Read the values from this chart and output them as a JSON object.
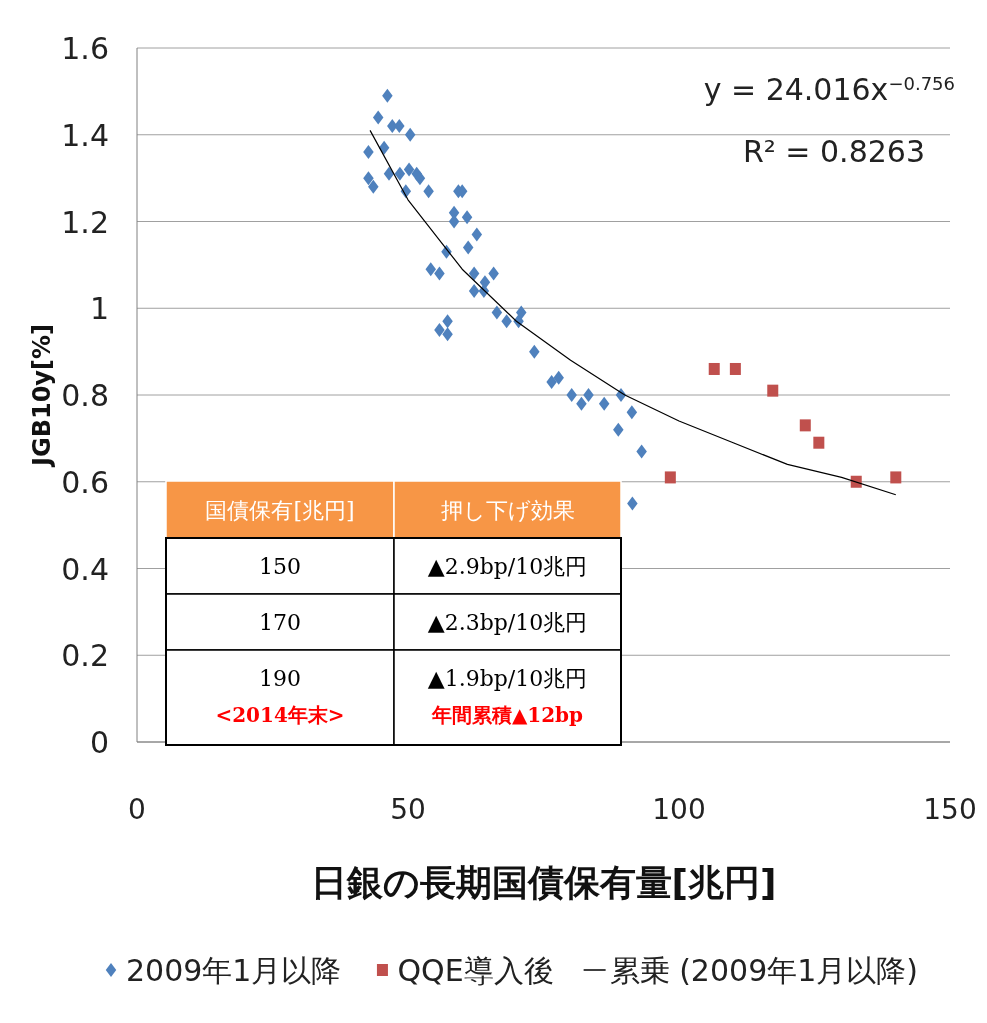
{
  "chart_data": {
    "type": "scatter",
    "xlabel": "日銀の長期国債保有量[兆円]",
    "ylabel": "JGB10y[%]",
    "xlim": [
      0,
      150
    ],
    "ylim": [
      0,
      1.6
    ],
    "xticks": [
      0,
      50,
      100,
      150
    ],
    "yticks": [
      0,
      0.2,
      0.4,
      0.6,
      0.8,
      1,
      1.2,
      1.4,
      1.6
    ],
    "grid": "y",
    "legend": "bottom",
    "series": [
      {
        "name": "2009年1月以降",
        "marker": "diamond",
        "color": "#4f81bd",
        "x": [
          42.7,
          42.7,
          43.6,
          44.5,
          45.6,
          46.2,
          46.5,
          47.1,
          48.4,
          48.5,
          49.6,
          50.2,
          50.4,
          51.6,
          52.2,
          53.8,
          54.2,
          55.8,
          55.8,
          57.1,
          57.3,
          57.3,
          58.5,
          58.5,
          59.3,
          60.0,
          60.9,
          61.1,
          62.2,
          62.7,
          62.2,
          64.0,
          64.2,
          65.8,
          66.4,
          68.2,
          70.4,
          70.9,
          73.3,
          76.5,
          77.8,
          80.2,
          82.0,
          83.3,
          86.2,
          88.8,
          89.3,
          91.3,
          91.4,
          93.1
        ],
        "values": [
          1.3,
          1.36,
          1.28,
          1.44,
          1.37,
          1.49,
          1.31,
          1.42,
          1.42,
          1.31,
          1.27,
          1.32,
          1.4,
          1.31,
          1.3,
          1.27,
          1.09,
          1.08,
          0.95,
          1.13,
          0.97,
          0.94,
          1.22,
          1.2,
          1.27,
          1.27,
          1.21,
          1.14,
          1.08,
          1.17,
          1.04,
          1.04,
          1.06,
          1.08,
          0.99,
          0.97,
          0.97,
          0.99,
          0.9,
          0.83,
          0.84,
          0.8,
          0.78,
          0.8,
          0.78,
          0.72,
          0.8,
          0.76,
          0.55,
          0.67
        ]
      },
      {
        "name": "QQE導入後",
        "marker": "square",
        "color": "#c0504d",
        "x": [
          98.4,
          106.5,
          110.4,
          117.3,
          123.3,
          125.8,
          132.7,
          140.0
        ],
        "values": [
          0.61,
          0.86,
          0.86,
          0.81,
          0.73,
          0.69,
          0.6,
          0.61
        ]
      },
      {
        "name": "累乗 (2009年1月以降)",
        "type": "line",
        "marker": "none",
        "color": "#000000",
        "x": [
          43,
          50,
          60,
          70,
          80,
          90,
          100,
          110,
          120,
          130,
          140
        ],
        "values": [
          1.41,
          1.25,
          1.09,
          0.97,
          0.88,
          0.8,
          0.74,
          0.69,
          0.64,
          0.61,
          0.57
        ]
      }
    ],
    "annotations": [
      "y = 24.016x$^{−0.756}$",
      "R² = 0.8263",
      "国債保有[兆円]",
      "押し下げ効果",
      "150",
      "▲2.9bp/10兆円",
      "170",
      "▲2.3bp/10兆円",
      "190",
      "▲1.9bp/10兆円",
      "<2014年末>",
      "年間累積▲12bp"
    ]
  }
}
